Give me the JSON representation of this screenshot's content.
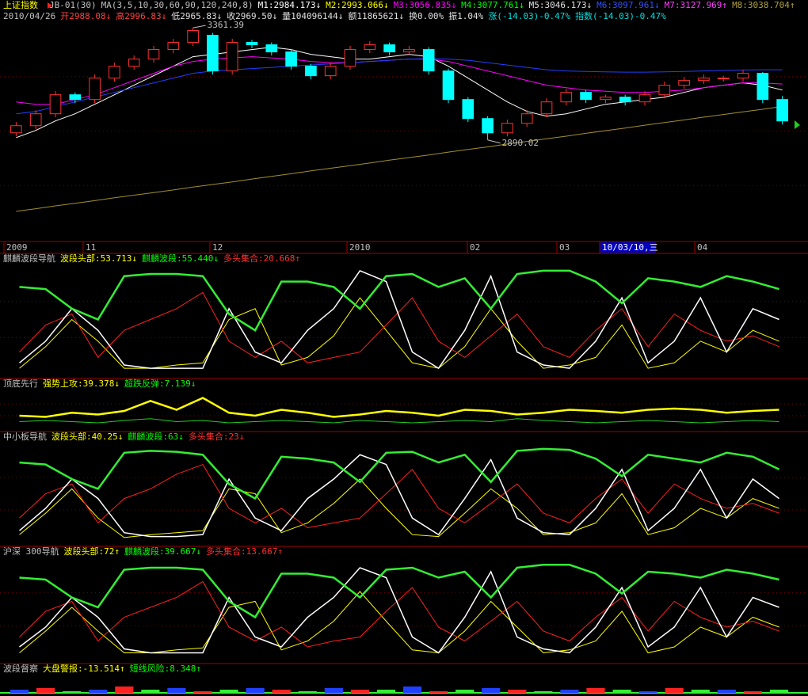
{
  "header": {
    "row1": [
      {
        "text": "上证指数",
        "color": "#ffff00"
      },
      {
        "text": "JB-01(30)",
        "color": "#c0c0c0"
      },
      {
        "text": "MA(3,5,10,30,60,90,120,240,8)",
        "color": "#c0c0c0"
      },
      {
        "text": "M1:2984.173↓",
        "color": "#ffffff"
      },
      {
        "text": "M2:2993.066↓",
        "color": "#ffff00"
      },
      {
        "text": "M3:3056.835↓",
        "color": "#ff00ff"
      },
      {
        "text": "M4:3077.761↓",
        "color": "#00ff00"
      },
      {
        "text": "M5:3046.173↓",
        "color": "#e0e0e0"
      },
      {
        "text": "M6:3097.961↓",
        "color": "#3050ff"
      },
      {
        "text": "M7:3127.969↑",
        "color": "#ff40ff"
      },
      {
        "text": "M8:3038.704↑",
        "color": "#b0a040"
      }
    ],
    "row2": [
      {
        "text": "2010/04/26",
        "color": "#c0c0c0"
      },
      {
        "text": "开2988.08↓",
        "color": "#ff4040"
      },
      {
        "text": "高2996.83↓",
        "color": "#ff4040"
      },
      {
        "text": "低2965.83↓",
        "color": "#e0e0e0"
      },
      {
        "text": "收2969.50↓",
        "color": "#e0e0e0"
      },
      {
        "text": "量104096144↓",
        "color": "#e0e0e0"
      },
      {
        "text": "额11865621↓",
        "color": "#e0e0e0"
      },
      {
        "text": "换0.00%",
        "color": "#e0e0e0"
      },
      {
        "text": "振1.04%",
        "color": "#e0e0e0"
      },
      {
        "text": "涨(-14.03)-0.47%",
        "color": "#00e0e0"
      },
      {
        "text": "指数(-14.03)-0.47%",
        "color": "#00e0e0"
      }
    ]
  },
  "main": {
    "type": "candlestick",
    "ylim": [
      2470,
      3385
    ],
    "up_color": "#ff3030",
    "down_color": "#00ffff",
    "open": [
      2920,
      2950,
      3000,
      3080,
      3060,
      3150,
      3200,
      3230,
      3270,
      3300,
      3330,
      3180,
      3300,
      3290,
      3260,
      3200,
      3160,
      3200,
      3270,
      3290,
      3260,
      3270,
      3180,
      3060,
      2980,
      2920,
      2960,
      3000,
      3050,
      3090,
      3060,
      3070,
      3050,
      3080,
      3120,
      3140,
      3150,
      3150,
      3170,
      3060
    ],
    "high": [
      2965,
      3015,
      3095,
      3090,
      3165,
      3215,
      3245,
      3285,
      3315,
      3361.39,
      3340,
      3315,
      3310,
      3300,
      3270,
      3210,
      3215,
      3285,
      3305,
      3300,
      3285,
      3280,
      3190,
      3070,
      2990,
      2975,
      3015,
      3065,
      3105,
      3100,
      3080,
      3080,
      3095,
      3135,
      3155,
      3165,
      3160,
      3185,
      3175,
      3075
    ],
    "low": [
      2905,
      2935,
      2985,
      3045,
      3045,
      3135,
      3185,
      3215,
      3255,
      3285,
      3165,
      3165,
      3275,
      3245,
      3185,
      3145,
      3145,
      3185,
      3255,
      3245,
      3245,
      3165,
      3045,
      2965,
      2890.02,
      2905,
      2945,
      2985,
      3035,
      3045,
      3045,
      3035,
      3035,
      3065,
      3105,
      3125,
      3135,
      3135,
      3045,
      2955
    ],
    "close": [
      2950,
      3000,
      3080,
      3060,
      3150,
      3200,
      3230,
      3270,
      3300,
      3350,
      3180,
      3300,
      3290,
      3260,
      3200,
      3160,
      3200,
      3270,
      3290,
      3260,
      3270,
      3180,
      3060,
      2980,
      2920,
      2960,
      3000,
      3050,
      3090,
      3060,
      3070,
      3050,
      3080,
      3120,
      3140,
      3150,
      3150,
      3170,
      3060,
      2970
    ],
    "series": [
      {
        "color": "#ffffff",
        "values": [
          2900,
          2930,
          2970,
          3000,
          3040,
          3080,
          3120,
          3160,
          3200,
          3240,
          3250,
          3260,
          3270,
          3280,
          3270,
          3250,
          3240,
          3230,
          3230,
          3240,
          3250,
          3240,
          3200,
          3150,
          3100,
          3050,
          3010,
          2990,
          3000,
          3020,
          3040,
          3050,
          3060,
          3070,
          3090,
          3110,
          3120,
          3130,
          3120,
          3100
        ]
      },
      {
        "color": "#ff00ff",
        "values": [
          3050,
          3040,
          3040,
          3060,
          3080,
          3110,
          3140,
          3170,
          3200,
          3220,
          3230,
          3235,
          3240,
          3235,
          3230,
          3220,
          3215,
          3215,
          3220,
          3225,
          3230,
          3230,
          3220,
          3200,
          3180,
          3160,
          3140,
          3120,
          3110,
          3100,
          3095,
          3090,
          3090,
          3095,
          3100,
          3110,
          3120,
          3130,
          3130,
          3125
        ]
      },
      {
        "color": "#2040ff",
        "values": [
          3000,
          3010,
          3030,
          3050,
          3070,
          3090,
          3110,
          3130,
          3150,
          3170,
          3180,
          3185,
          3190,
          3195,
          3200,
          3205,
          3210,
          3215,
          3220,
          3225,
          3230,
          3232,
          3230,
          3225,
          3215,
          3205,
          3195,
          3185,
          3180,
          3178,
          3176,
          3175,
          3175,
          3176,
          3178,
          3180,
          3182,
          3184,
          3185,
          3185
        ]
      },
      {
        "color": "#a09030",
        "values": [
          2590,
          2601,
          2613,
          2624,
          2635,
          2647,
          2658,
          2669,
          2680,
          2692,
          2703,
          2714,
          2726,
          2737,
          2748,
          2760,
          2771,
          2782,
          2793,
          2805,
          2816,
          2827,
          2839,
          2850,
          2861,
          2873,
          2884,
          2895,
          2906,
          2918,
          2929,
          2940,
          2952,
          2963,
          2974,
          2986,
          2997,
          3008,
          3019,
          3031
        ]
      }
    ],
    "annotations": [
      {
        "text": "3361.39",
        "value": 3361.39,
        "index": 9
      },
      {
        "text": "2890.02",
        "value": 2890.02,
        "index": 24
      }
    ],
    "date_labels": [
      "2009",
      "11",
      "12",
      "2010",
      "02",
      "03",
      "10/03/10,三",
      "04"
    ]
  },
  "panels": [
    {
      "type": "line",
      "ylim": [
        0,
        100
      ],
      "label": [
        {
          "text": "麒麟波段导航",
          "color": "#c0c0c0"
        },
        {
          "text": "波段头部:53.713↓",
          "color": "#ffff00"
        },
        {
          "text": "麒麟波段:55.440↓",
          "color": "#00ff00"
        },
        {
          "text": "多头集合:20.668↑",
          "color": "#ff3030"
        }
      ],
      "series": [
        {
          "color": "#ffff00",
          "width": 1,
          "values": [
            5,
            25,
            50,
            30,
            5,
            5,
            8,
            10,
            50,
            60,
            8,
            15,
            35,
            70,
            40,
            10,
            5,
            25,
            60,
            30,
            5,
            8,
            15,
            45,
            5,
            10,
            30,
            20,
            40,
            30
          ]
        },
        {
          "color": "#ff2020",
          "width": 1,
          "values": [
            20,
            45,
            55,
            15,
            40,
            50,
            60,
            75,
            30,
            15,
            30,
            10,
            15,
            20,
            45,
            70,
            30,
            15,
            35,
            55,
            25,
            15,
            40,
            60,
            25,
            55,
            40,
            30,
            35,
            25
          ]
        },
        {
          "color": "#ffffff",
          "width": 1.5,
          "values": [
            10,
            30,
            60,
            40,
            8,
            5,
            5,
            5,
            60,
            20,
            10,
            40,
            60,
            95,
            85,
            20,
            5,
            40,
            90,
            20,
            8,
            5,
            30,
            70,
            10,
            30,
            70,
            20,
            60,
            50
          ]
        },
        {
          "color": "#33ee33",
          "width": 2.5,
          "values": [
            80,
            78,
            60,
            50,
            90,
            92,
            92,
            90,
            55,
            40,
            85,
            85,
            80,
            60,
            90,
            92,
            80,
            88,
            60,
            92,
            95,
            95,
            85,
            65,
            88,
            85,
            80,
            90,
            85,
            78
          ]
        }
      ]
    },
    {
      "type": "line",
      "ylim": [
        0,
        60
      ],
      "label": [
        {
          "text": "顶底先行",
          "color": "#c0c0c0"
        },
        {
          "text": "强势上攻:39.378↓",
          "color": "#ffff00"
        },
        {
          "text": "超跌反弹:7.139↓",
          "color": "#00ff00"
        }
      ],
      "series": [
        {
          "color": "#22cc22",
          "width": 1,
          "values": [
            10,
            12,
            10,
            8,
            12,
            15,
            10,
            12,
            8,
            10,
            12,
            10,
            8,
            12,
            10,
            8,
            10,
            12,
            10,
            15,
            12,
            10,
            8,
            10,
            12,
            10,
            8,
            10,
            12,
            10
          ]
        },
        {
          "color": "#ffff00",
          "width": 2.5,
          "values": [
            20,
            18,
            25,
            22,
            28,
            45,
            30,
            50,
            25,
            20,
            30,
            25,
            18,
            22,
            28,
            25,
            20,
            30,
            28,
            22,
            25,
            30,
            28,
            25,
            30,
            32,
            30,
            25,
            28,
            30
          ]
        }
      ]
    },
    {
      "type": "line",
      "ylim": [
        0,
        100
      ],
      "label": [
        {
          "text": "中小板导航",
          "color": "#c0c0c0"
        },
        {
          "text": "波段头部:40.25↓",
          "color": "#ffff00"
        },
        {
          "text": "麒麟波段:63↓",
          "color": "#00ff00"
        },
        {
          "text": "多头集合:23↓",
          "color": "#ff3030"
        }
      ],
      "series": [
        {
          "color": "#ffff00",
          "width": 1,
          "values": [
            8,
            30,
            55,
            25,
            5,
            8,
            10,
            12,
            55,
            50,
            10,
            20,
            40,
            65,
            35,
            8,
            6,
            30,
            55,
            35,
            8,
            10,
            20,
            50,
            8,
            15,
            35,
            25,
            45,
            35
          ]
        },
        {
          "color": "#ff2020",
          "width": 1,
          "values": [
            25,
            50,
            60,
            20,
            45,
            55,
            70,
            80,
            35,
            20,
            35,
            15,
            20,
            25,
            50,
            75,
            35,
            20,
            40,
            60,
            30,
            20,
            45,
            65,
            30,
            60,
            45,
            35,
            40,
            30
          ]
        },
        {
          "color": "#ffffff",
          "width": 1.5,
          "values": [
            12,
            35,
            65,
            45,
            10,
            6,
            6,
            8,
            65,
            25,
            12,
            45,
            65,
            90,
            80,
            25,
            8,
            45,
            85,
            25,
            10,
            8,
            35,
            75,
            12,
            35,
            75,
            25,
            65,
            45
          ]
        },
        {
          "color": "#33ee33",
          "width": 2.5,
          "values": [
            82,
            80,
            65,
            55,
            92,
            94,
            93,
            90,
            60,
            45,
            88,
            86,
            82,
            62,
            92,
            93,
            82,
            90,
            62,
            94,
            96,
            95,
            86,
            68,
            90,
            86,
            82,
            92,
            88,
            75
          ]
        }
      ]
    },
    {
      "type": "line",
      "ylim": [
        0,
        100
      ],
      "label": [
        {
          "text": "沪深 300导航",
          "color": "#c0c0c0"
        },
        {
          "text": "波段头部:72↑",
          "color": "#ffff00"
        },
        {
          "text": "麒麟波段:39.667↓",
          "color": "#00ff00"
        },
        {
          "text": "多头集合:13.667↑",
          "color": "#ff3030"
        }
      ],
      "series": [
        {
          "color": "#ffff00",
          "width": 1,
          "values": [
            6,
            28,
            52,
            28,
            6,
            6,
            9,
            11,
            52,
            58,
            9,
            18,
            38,
            68,
            38,
            9,
            6,
            28,
            58,
            32,
            6,
            9,
            18,
            48,
            6,
            12,
            32,
            22,
            42,
            32
          ]
        },
        {
          "color": "#ff2020",
          "width": 1,
          "values": [
            22,
            48,
            58,
            18,
            42,
            52,
            62,
            78,
            32,
            18,
            32,
            12,
            18,
            22,
            48,
            72,
            32,
            18,
            38,
            58,
            28,
            18,
            42,
            62,
            28,
            58,
            42,
            32,
            38,
            28
          ]
        },
        {
          "color": "#ffffff",
          "width": 1.5,
          "values": [
            12,
            32,
            62,
            42,
            10,
            6,
            6,
            6,
            62,
            22,
            12,
            42,
            62,
            92,
            82,
            22,
            6,
            42,
            88,
            22,
            10,
            6,
            32,
            72,
            12,
            32,
            72,
            22,
            62,
            52
          ]
        },
        {
          "color": "#33ee33",
          "width": 2.5,
          "values": [
            82,
            80,
            62,
            52,
            90,
            92,
            92,
            90,
            58,
            42,
            86,
            86,
            82,
            62,
            90,
            92,
            82,
            88,
            62,
            92,
            95,
            95,
            86,
            66,
            88,
            86,
            82,
            90,
            86,
            80
          ]
        }
      ]
    },
    {
      "type": "bar",
      "ylim": [
        0,
        10
      ],
      "label": [
        {
          "text": "波段督察",
          "color": "#c0c0c0"
        },
        {
          "text": "大盘警报:-13.514↑",
          "color": "#ffff00"
        },
        {
          "text": "短线风险:8.348↑",
          "color": "#00ff00"
        }
      ],
      "colors": [
        "#2040ff",
        "#ff2020",
        "#33ee33"
      ],
      "values": [
        2,
        3,
        1,
        2,
        4,
        2,
        3,
        1,
        2,
        3,
        2,
        1,
        3,
        2,
        2,
        4,
        1,
        2,
        3,
        2,
        1,
        2,
        3,
        2,
        1,
        3,
        2,
        2,
        1,
        2
      ]
    }
  ]
}
